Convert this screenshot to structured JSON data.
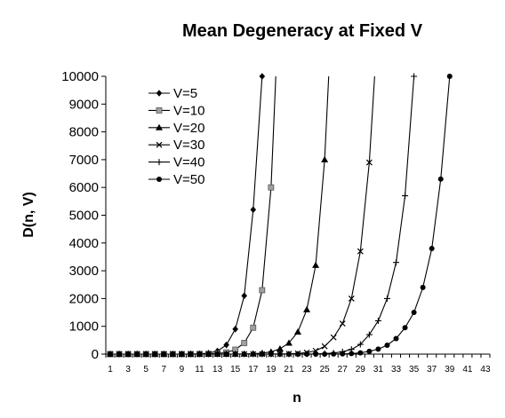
{
  "chart_data": {
    "type": "line",
    "title": "Mean Degeneracy at Fixed V",
    "xlabel": "n",
    "ylabel": "D(n, V)",
    "xlim": [
      1,
      43
    ],
    "ylim": [
      0,
      10000
    ],
    "x_ticks": [
      1,
      3,
      5,
      7,
      9,
      11,
      13,
      15,
      17,
      19,
      21,
      23,
      25,
      27,
      29,
      31,
      33,
      35,
      37,
      39,
      41,
      43
    ],
    "y_ticks": [
      0,
      1000,
      2000,
      3000,
      4000,
      5000,
      6000,
      7000,
      8000,
      9000,
      10000
    ],
    "y_tick_labels": [
      "0",
      "1000",
      "2000",
      "3000",
      "4000",
      "5000",
      "6000",
      "7000",
      "8000",
      "9000",
      "10000"
    ],
    "grid": false,
    "legend_position": "top-left",
    "series": [
      {
        "name": "V=5",
        "marker": "diamond",
        "x": [
          1,
          2,
          3,
          4,
          5,
          6,
          7,
          8,
          9,
          10,
          11,
          12,
          13,
          14,
          15,
          16,
          17,
          18
        ],
        "y": [
          0,
          0,
          0,
          0,
          0,
          0,
          0,
          0,
          0,
          5,
          12,
          35,
          110,
          330,
          900,
          2100,
          5200,
          10000
        ]
      },
      {
        "name": "V=10",
        "marker": "square",
        "x": [
          1,
          2,
          3,
          4,
          5,
          6,
          7,
          8,
          9,
          10,
          11,
          12,
          13,
          14,
          15,
          16,
          17,
          18,
          19
        ],
        "y": [
          0,
          0,
          0,
          0,
          0,
          0,
          0,
          0,
          0,
          0,
          3,
          8,
          22,
          60,
          160,
          400,
          950,
          2300,
          6000
        ]
      },
      {
        "name": "V=20",
        "marker": "triangle",
        "x": [
          1,
          2,
          3,
          4,
          5,
          6,
          7,
          8,
          9,
          10,
          11,
          12,
          13,
          14,
          15,
          16,
          17,
          18,
          19,
          20,
          21,
          22,
          23,
          24,
          25
        ],
        "y": [
          0,
          0,
          0,
          0,
          0,
          0,
          0,
          0,
          0,
          0,
          0,
          0,
          0,
          0,
          2,
          6,
          15,
          35,
          80,
          190,
          400,
          800,
          1600,
          3200,
          7000
        ]
      },
      {
        "name": "V=30",
        "marker": "x",
        "x": [
          1,
          2,
          3,
          4,
          5,
          6,
          7,
          8,
          9,
          10,
          11,
          12,
          13,
          14,
          15,
          16,
          17,
          18,
          19,
          20,
          21,
          22,
          23,
          24,
          25,
          26,
          27,
          28,
          29,
          30
        ],
        "y": [
          0,
          0,
          0,
          0,
          0,
          0,
          0,
          0,
          0,
          0,
          0,
          0,
          0,
          0,
          0,
          0,
          0,
          0,
          2,
          5,
          12,
          25,
          55,
          120,
          280,
          600,
          1100,
          2000,
          3700,
          6900
        ]
      },
      {
        "name": "V=40",
        "marker": "plus",
        "x": [
          1,
          2,
          3,
          4,
          5,
          6,
          7,
          8,
          9,
          10,
          11,
          12,
          13,
          14,
          15,
          16,
          17,
          18,
          19,
          20,
          21,
          22,
          23,
          24,
          25,
          26,
          27,
          28,
          29,
          30,
          31,
          32,
          33,
          34,
          35
        ],
        "y": [
          0,
          0,
          0,
          0,
          0,
          0,
          0,
          0,
          0,
          0,
          0,
          0,
          0,
          0,
          0,
          0,
          0,
          0,
          0,
          0,
          0,
          1,
          3,
          8,
          18,
          40,
          85,
          170,
          350,
          700,
          1200,
          2000,
          3300,
          5700,
          10000
        ]
      },
      {
        "name": "V=50",
        "marker": "circle",
        "x": [
          1,
          2,
          3,
          4,
          5,
          6,
          7,
          8,
          9,
          10,
          11,
          12,
          13,
          14,
          15,
          16,
          17,
          18,
          19,
          20,
          21,
          22,
          23,
          24,
          25,
          26,
          27,
          28,
          29,
          30,
          31,
          32,
          33,
          34,
          35,
          36,
          37,
          38,
          39
        ],
        "y": [
          0,
          0,
          0,
          0,
          0,
          0,
          0,
          0,
          0,
          0,
          0,
          0,
          0,
          0,
          0,
          0,
          0,
          0,
          0,
          0,
          0,
          0,
          0,
          0,
          1,
          3,
          8,
          20,
          45,
          100,
          180,
          320,
          560,
          950,
          1500,
          2400,
          3800,
          6300,
          10000
        ]
      }
    ]
  }
}
